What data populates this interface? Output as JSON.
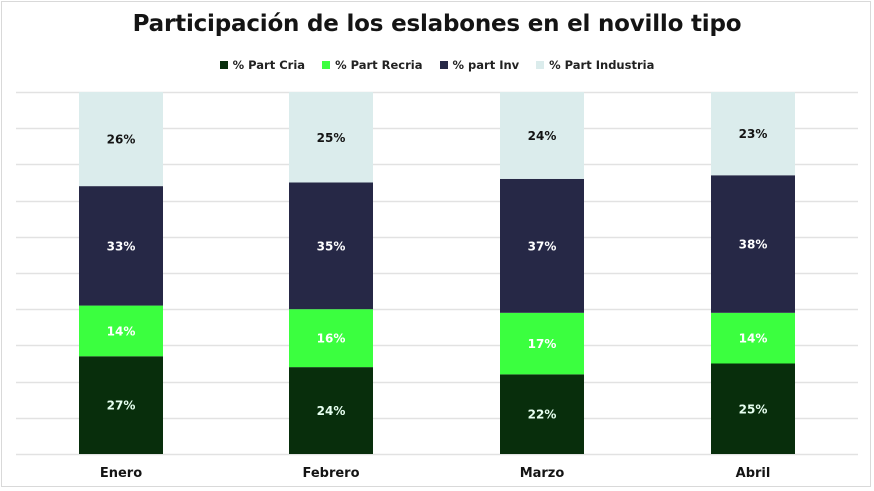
{
  "chart_data": {
    "type": "bar",
    "stacked": true,
    "title": "Participación de los eslabones en el novillo tipo",
    "xlabel": "",
    "ylabel": "",
    "ylim": [
      0,
      100
    ],
    "grid": true,
    "gridline_step": 10,
    "y_axis_visible": false,
    "legend_position": "top-center",
    "categories": [
      "Enero",
      "Febrero",
      "Marzo",
      "Abril"
    ],
    "series": [
      {
        "name": "% Part Cria",
        "color": "#082e0c",
        "label_color": "#e6fff0",
        "values": [
          27,
          24,
          22,
          25
        ],
        "labels": [
          "27%",
          "24%",
          "22%",
          "25%"
        ]
      },
      {
        "name": "% Part Recria",
        "color": "#3bff3f",
        "label_color": "#ffffff",
        "values": [
          14,
          16,
          17,
          14
        ],
        "labels": [
          "14%",
          "16%",
          "17%",
          "14%"
        ]
      },
      {
        "name": "% part Inv",
        "color": "#262846",
        "label_color": "#ffffff",
        "values": [
          33,
          35,
          37,
          38
        ],
        "labels": [
          "33%",
          "35%",
          "37%",
          "38%"
        ]
      },
      {
        "name": "% Part Industria",
        "color": "#dbecec",
        "label_color": "#141414",
        "values": [
          26,
          25,
          24,
          23
        ],
        "labels": [
          "26%",
          "25%",
          "24%",
          "23%"
        ]
      }
    ]
  }
}
